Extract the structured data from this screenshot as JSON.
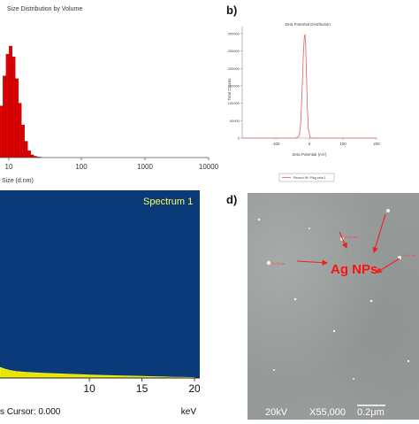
{
  "panel_labels": {
    "b": "b)",
    "d": "d)"
  },
  "chart_data": [
    {
      "id": "a",
      "type": "bar",
      "title": "Size Distribution by Volume",
      "xlabel": "Size (d.nm)",
      "ylabel": "",
      "x_scale": "log",
      "xlim": [
        4.5,
        10000
      ],
      "x_ticks": [
        "10",
        "100",
        "1000",
        "10000"
      ],
      "x": [
        6.5,
        7.2,
        7.9,
        8.7,
        9.6,
        10.6,
        11.7,
        12.9,
        14.2,
        15.7,
        17.3,
        19.1,
        21.0,
        23.2,
        25.6,
        28.2
      ],
      "values": [
        6,
        18,
        38,
        60,
        76,
        82,
        74,
        58,
        40,
        24,
        12,
        5,
        2,
        1,
        0.5,
        0.2
      ],
      "colors": {
        "bar": "#e00000",
        "bar_edge": "#7a0000"
      }
    },
    {
      "id": "b",
      "type": "line",
      "title": "Zeta Potential Distribution",
      "xlabel": "Zeta Potential (mV)",
      "ylabel": "Total Counts",
      "xlim": [
        -200,
        200
      ],
      "ylim": [
        0,
        320000
      ],
      "x_ticks": [
        "-100",
        "0",
        "100",
        "200"
      ],
      "y_ticks": [
        "0",
        "50000",
        "100000",
        "150000",
        "200000",
        "250000",
        "300000"
      ],
      "series": [
        {
          "name": "Record 94: Plag zeta 1",
          "x": [
            -40,
            -30,
            -26,
            -22,
            -18,
            -15,
            -13,
            -11,
            -9,
            -6,
            -3,
            2,
            8
          ],
          "values": [
            0,
            6000,
            40000,
            130000,
            240000,
            292000,
            296000,
            265000,
            190000,
            90000,
            25000,
            3000,
            0
          ]
        }
      ],
      "colors": {
        "line": "#e06060"
      }
    },
    {
      "id": "c",
      "type": "area",
      "title": "Spectrum 1",
      "xlabel": "keV",
      "cursor_label": "s Cursor: 0.000",
      "xlim": [
        1.5,
        20.5
      ],
      "x_ticks": [
        "10",
        "15",
        "20"
      ],
      "x": [
        1.5,
        2,
        2.5,
        3,
        4,
        5,
        6,
        7,
        8,
        9,
        10,
        11,
        12,
        13,
        14,
        15,
        16,
        17,
        18,
        19,
        20
      ],
      "values": [
        12,
        10,
        8.5,
        7.5,
        6.5,
        5.8,
        5.2,
        4.8,
        4.3,
        3.9,
        3.5,
        3.1,
        2.8,
        2.5,
        2.2,
        1.9,
        1.6,
        1.3,
        1.0,
        0.8,
        0.6
      ],
      "colors": {
        "background": "#0b3a78",
        "spectrum": "#e6e600",
        "text": "#ffff55"
      }
    }
  ],
  "sem": {
    "label": "Ag NPs",
    "annotations": [
      "21.76 nm",
      "24.62 nm",
      "24.06 nm"
    ],
    "footer": {
      "voltage": "20kV",
      "magnification": "X55,000",
      "scale": "0.2μm"
    },
    "colors": {
      "arrow": "#ee2222",
      "label": "#ff1111"
    }
  }
}
